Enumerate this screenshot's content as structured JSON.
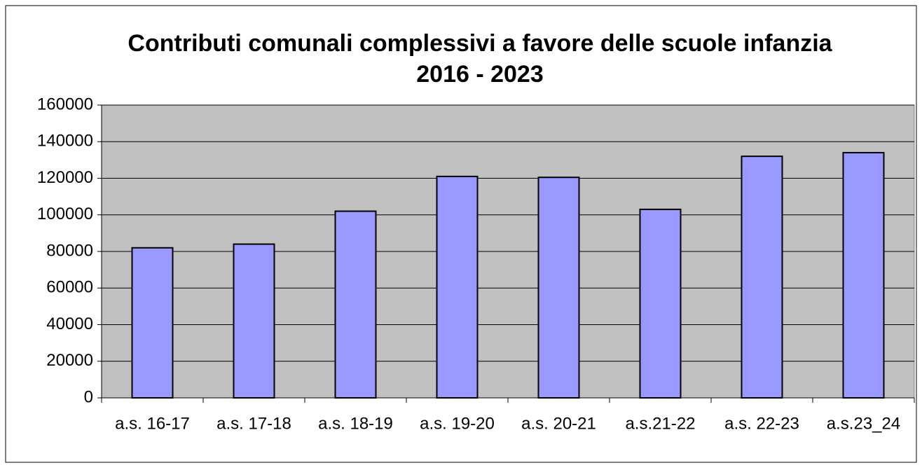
{
  "chart_data": {
    "type": "bar",
    "title": "Contributi comunali complessivi a favore delle scuole infanzia 2016 - 2023",
    "categories": [
      "a.s. 16-17",
      "a.s. 17-18",
      "a.s. 18-19",
      "a.s. 19-20",
      "a.s. 20-21",
      "a.s.21-22",
      "a.s. 22-23",
      "a.s.23_24"
    ],
    "values": [
      82000,
      84000,
      102000,
      121000,
      120500,
      103000,
      132000,
      134000
    ],
    "color": "#9999ff",
    "ylim": [
      0,
      160000
    ],
    "yticks": [
      0,
      20000,
      40000,
      60000,
      80000,
      100000,
      120000,
      140000,
      160000
    ],
    "grid": true
  }
}
